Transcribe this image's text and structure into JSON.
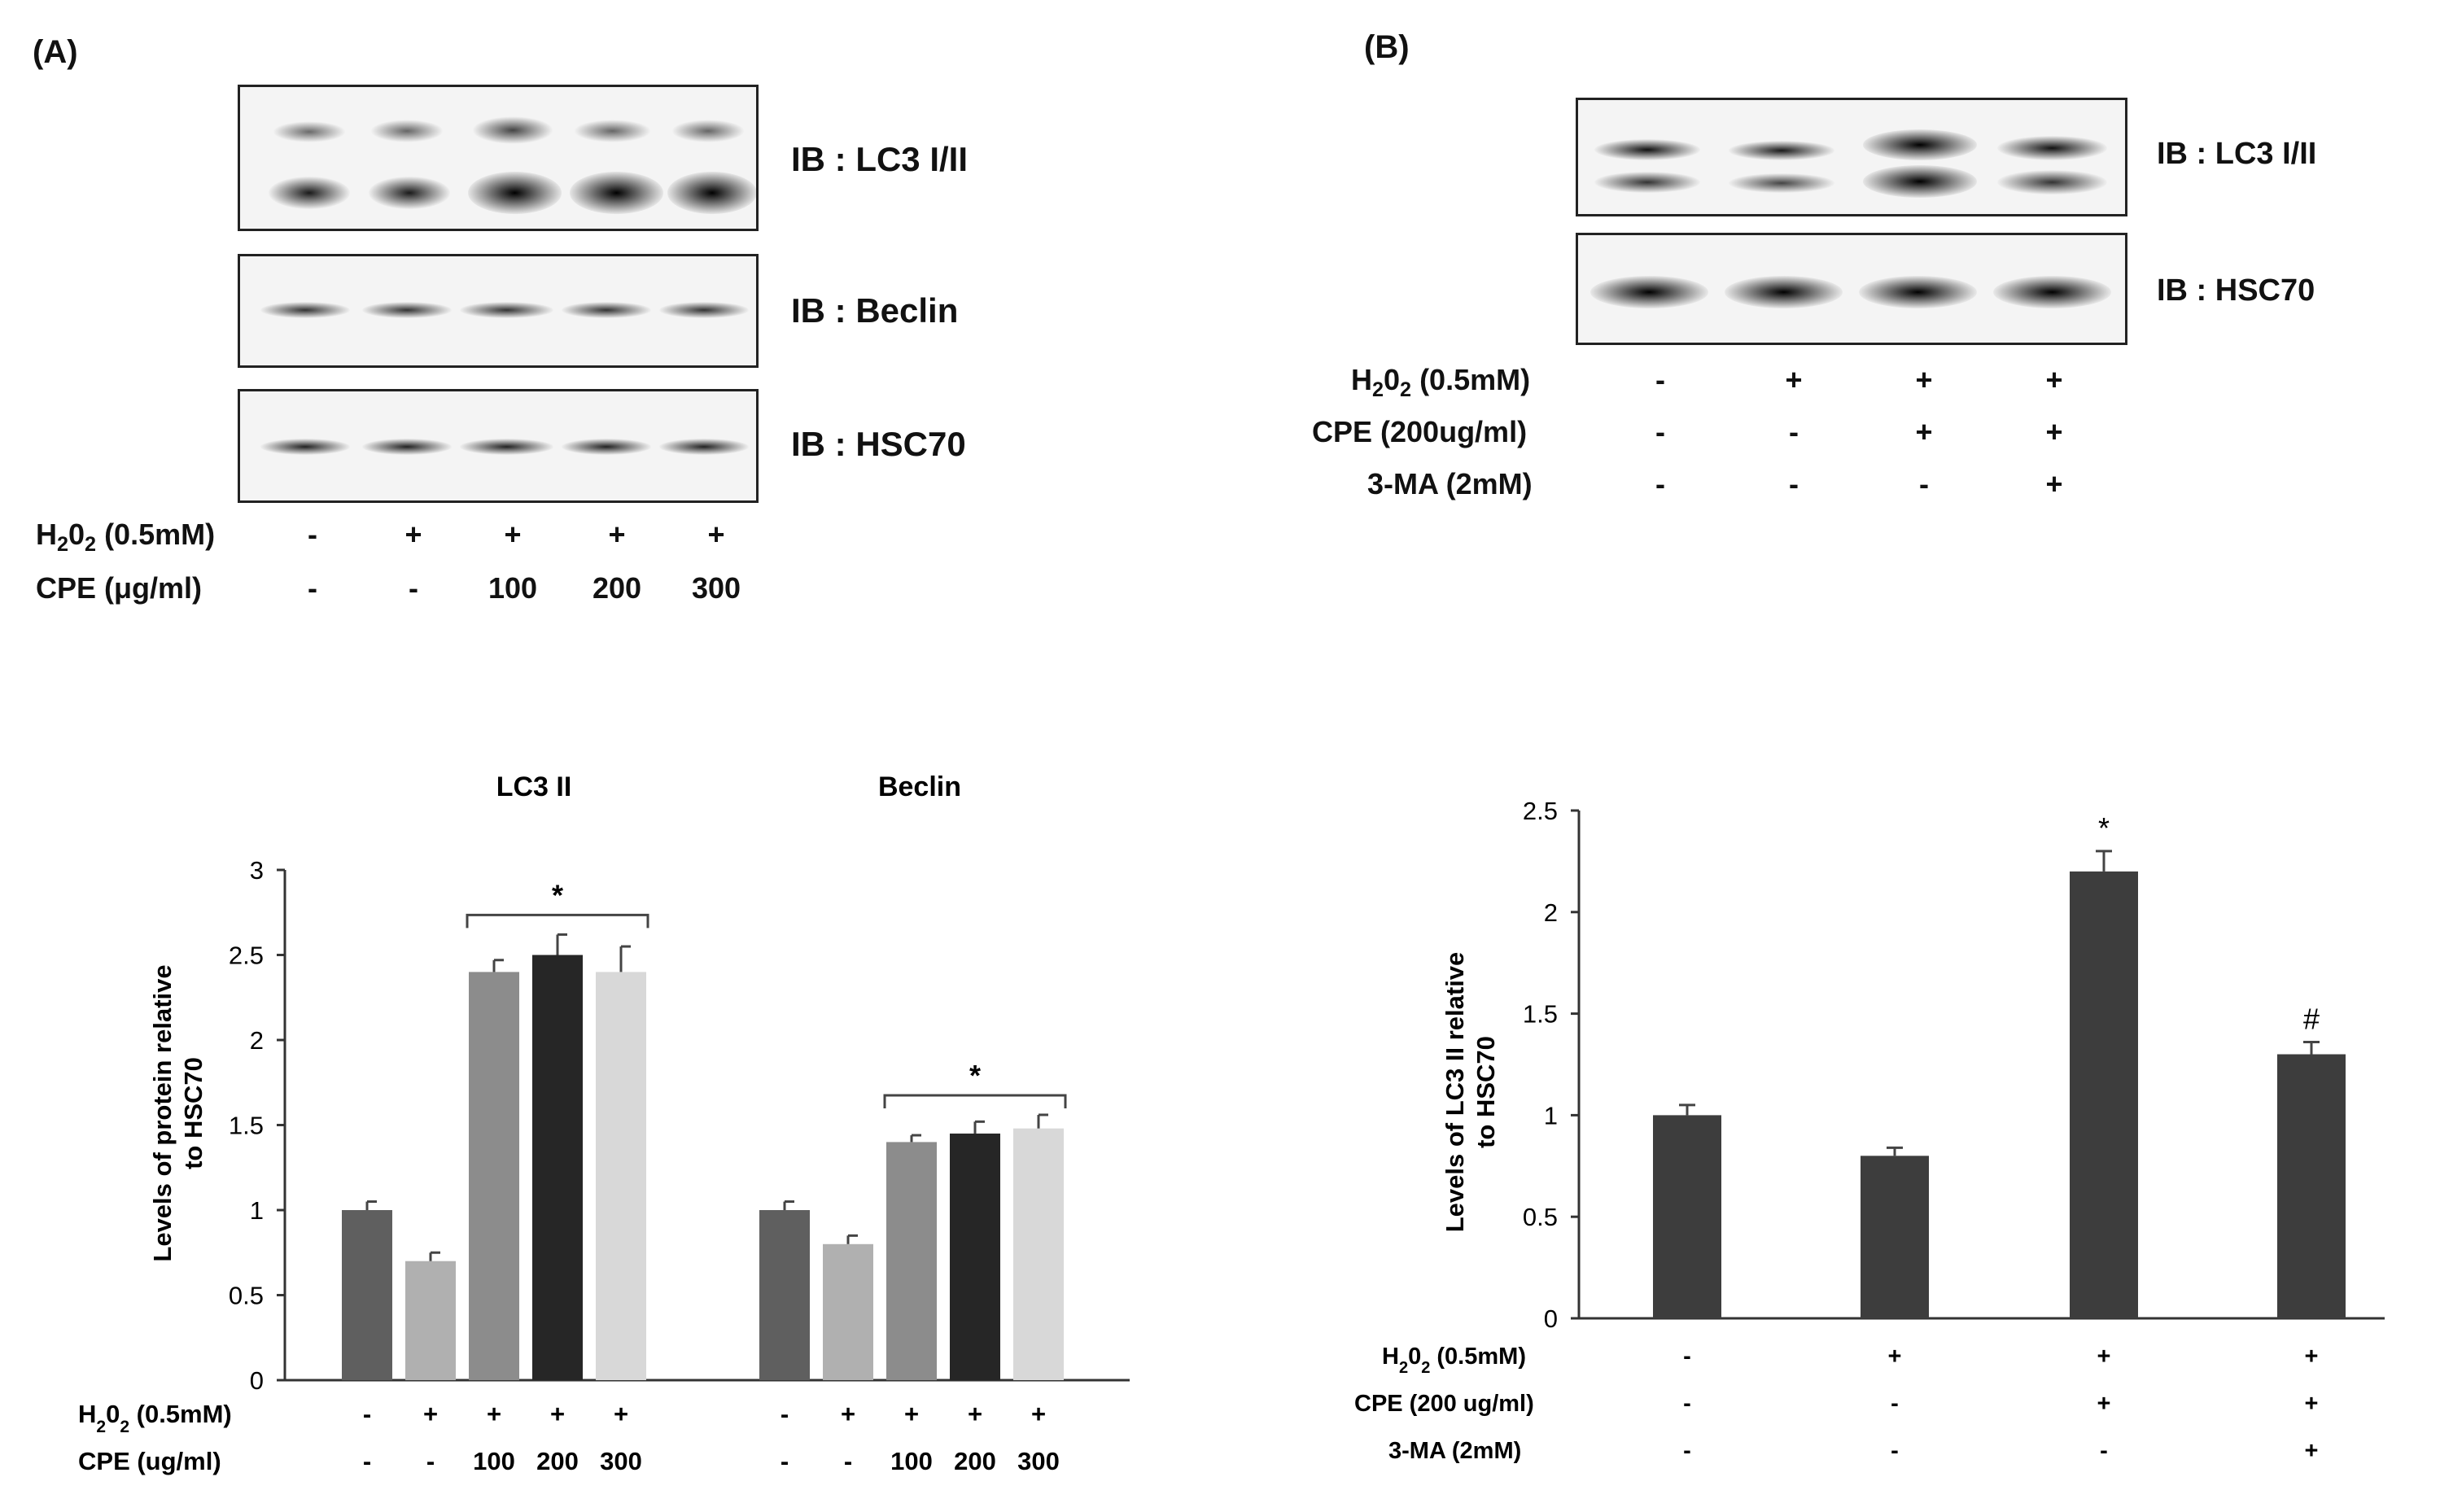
{
  "panelA": {
    "letter": "(A)",
    "blot_labels": [
      "IB : LC3 I/II",
      "IB : Beclin",
      "IB : HSC70"
    ],
    "h2o2_label_pre": "H",
    "h2o2_label_sub1": "2",
    "h2o2_label_mid": "0",
    "h2o2_label_sub2": "2",
    "h2o2_label_post": " (0.5mM)",
    "h2o2_values": [
      "-",
      "+",
      "+",
      "+",
      "+"
    ],
    "cpe_label": "CPE (μg/ml)",
    "cpe_values": [
      "-",
      "-",
      "100",
      "200",
      "300"
    ]
  },
  "panelB": {
    "letter": "(B)",
    "blot_labels": [
      "IB : LC3 I/II",
      "IB : HSC70"
    ],
    "h2o2_values": [
      "-",
      "+",
      "+",
      "+"
    ],
    "cpe_label": "CPE (200ug/ml)",
    "cpe_values": [
      "-",
      "-",
      "+",
      "+"
    ],
    "ma_label": "3-MA (2mM)",
    "ma_values": [
      "-",
      "-",
      "-",
      "+"
    ]
  },
  "chart_data": [
    {
      "type": "bar",
      "group_titles": [
        "LC3 II",
        "Beclin"
      ],
      "ylabel_line1": "Levels of protein relative",
      "ylabel_line2": "to HSC70",
      "ylim": [
        0,
        3
      ],
      "yticks": [
        "0",
        "0.5",
        "1",
        "1.5",
        "2",
        "2.5",
        "3"
      ],
      "bar_colors": [
        "#5f5f5f",
        "#b0b0b0",
        "#8c8c8c",
        "#262626",
        "#d8d8d8"
      ],
      "groups": [
        {
          "name": "LC3 II",
          "values": [
            1.0,
            0.7,
            2.4,
            2.5,
            2.4
          ],
          "errors": [
            0.05,
            0.05,
            0.07,
            0.12,
            0.15
          ]
        },
        {
          "name": "Beclin",
          "values": [
            1.0,
            0.8,
            1.4,
            1.45,
            1.48
          ],
          "errors": [
            0.05,
            0.05,
            0.04,
            0.07,
            0.08
          ]
        }
      ],
      "significance": [
        "*",
        "*"
      ],
      "h2o2_values": [
        "-",
        "+",
        "+",
        "+",
        "+"
      ],
      "cpe_label": "CPE (ug/ml)",
      "cpe_values": [
        "-",
        "-",
        "100",
        "200",
        "300"
      ]
    },
    {
      "type": "bar",
      "ylabel_line1": "Levels of LC3 II relative",
      "ylabel_line2": "to HSC70",
      "ylim": [
        0,
        2.5
      ],
      "yticks": [
        "0",
        "0.5",
        "1",
        "1.5",
        "2",
        "2.5"
      ],
      "bar_color": "#3d3d3d",
      "values": [
        1.0,
        0.8,
        2.2,
        1.3
      ],
      "errors": [
        0.05,
        0.04,
        0.1,
        0.06
      ],
      "marks": [
        "",
        "",
        "*",
        "#"
      ],
      "h2o2_values": [
        "-",
        "+",
        "+",
        "+"
      ],
      "cpe_label": "CPE (200 ug/ml)",
      "cpe_values": [
        "-",
        "-",
        "+",
        "+"
      ],
      "ma_label": "3-MA (2mM)",
      "ma_values": [
        "-",
        "-",
        "-",
        "+"
      ]
    }
  ]
}
